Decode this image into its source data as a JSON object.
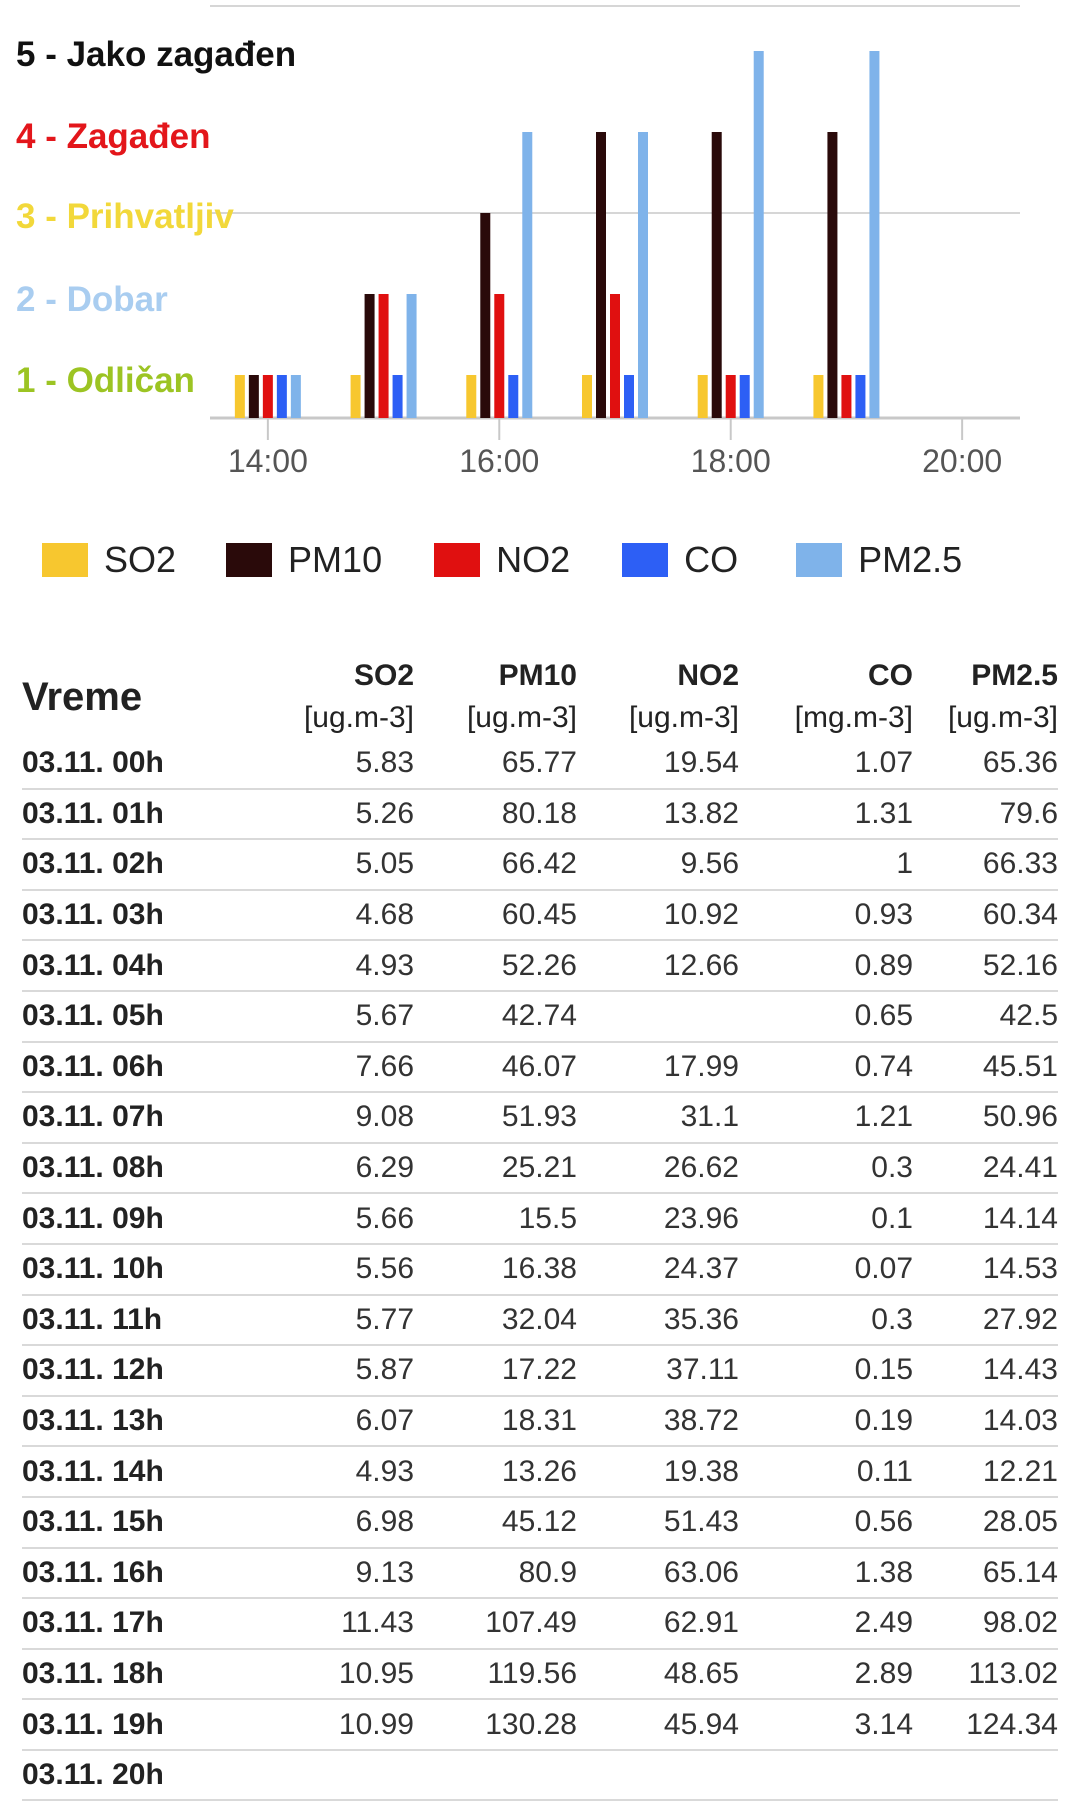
{
  "chart_data": {
    "type": "bar",
    "categories": [
      "14:00",
      "15:00",
      "16:00",
      "17:00",
      "18:00",
      "19:00"
    ],
    "x_ticks": [
      "14:00",
      "16:00",
      "18:00",
      "20:00"
    ],
    "x_range": [
      "13:30",
      "20:30"
    ],
    "ylim": [
      0.5,
      5.5
    ],
    "y_levels": [
      {
        "value": 5,
        "label": "5 - Jako zagađen",
        "color": "#111111"
      },
      {
        "value": 4,
        "label": "4 - Zagađen",
        "color": "#e3161b"
      },
      {
        "value": 3,
        "label": "3 - Prihvatljiv",
        "color": "#f2d83a"
      },
      {
        "value": 2,
        "label": "2 - Dobar",
        "color": "#a9cdf0"
      },
      {
        "value": 1,
        "label": "1 - Odličan",
        "color": "#9cc423"
      }
    ],
    "series": [
      {
        "name": "SO2",
        "color": "#f7c72f",
        "values": [
          1,
          1,
          1,
          1,
          1,
          1
        ]
      },
      {
        "name": "PM10",
        "color": "#2a0a0a",
        "values": [
          1,
          2,
          3,
          4,
          4,
          4
        ]
      },
      {
        "name": "NO2",
        "color": "#e01010",
        "values": [
          1,
          2,
          2,
          2,
          1,
          1
        ]
      },
      {
        "name": "CO",
        "color": "#2d5ff5",
        "values": [
          1,
          1,
          1,
          1,
          1,
          1
        ]
      },
      {
        "name": "PM2.5",
        "color": "#7fb3ea",
        "values": [
          1,
          2,
          4,
          4,
          5,
          5
        ]
      }
    ],
    "grid": true,
    "legend_position": "bottom"
  },
  "table": {
    "time_header": "Vreme",
    "columns": [
      {
        "name": "SO2",
        "unit": "[ug.m-3]"
      },
      {
        "name": "PM10",
        "unit": "[ug.m-3]"
      },
      {
        "name": "NO2",
        "unit": "[ug.m-3]"
      },
      {
        "name": "CO",
        "unit": "[mg.m-3]"
      },
      {
        "name": "PM2.5",
        "unit": "[ug.m-3]"
      }
    ],
    "rows": [
      {
        "time": "03.11. 00h",
        "values": [
          "5.83",
          "65.77",
          "19.54",
          "1.07",
          "65.36"
        ]
      },
      {
        "time": "03.11. 01h",
        "values": [
          "5.26",
          "80.18",
          "13.82",
          "1.31",
          "79.6"
        ]
      },
      {
        "time": "03.11. 02h",
        "values": [
          "5.05",
          "66.42",
          "9.56",
          "1",
          "66.33"
        ]
      },
      {
        "time": "03.11. 03h",
        "values": [
          "4.68",
          "60.45",
          "10.92",
          "0.93",
          "60.34"
        ]
      },
      {
        "time": "03.11. 04h",
        "values": [
          "4.93",
          "52.26",
          "12.66",
          "0.89",
          "52.16"
        ]
      },
      {
        "time": "03.11. 05h",
        "values": [
          "5.67",
          "42.74",
          "",
          "0.65",
          "42.5"
        ]
      },
      {
        "time": "03.11. 06h",
        "values": [
          "7.66",
          "46.07",
          "17.99",
          "0.74",
          "45.51"
        ]
      },
      {
        "time": "03.11. 07h",
        "values": [
          "9.08",
          "51.93",
          "31.1",
          "1.21",
          "50.96"
        ]
      },
      {
        "time": "03.11. 08h",
        "values": [
          "6.29",
          "25.21",
          "26.62",
          "0.3",
          "24.41"
        ]
      },
      {
        "time": "03.11. 09h",
        "values": [
          "5.66",
          "15.5",
          "23.96",
          "0.1",
          "14.14"
        ]
      },
      {
        "time": "03.11. 10h",
        "values": [
          "5.56",
          "16.38",
          "24.37",
          "0.07",
          "14.53"
        ]
      },
      {
        "time": "03.11. 11h",
        "values": [
          "5.77",
          "32.04",
          "35.36",
          "0.3",
          "27.92"
        ]
      },
      {
        "time": "03.11. 12h",
        "values": [
          "5.87",
          "17.22",
          "37.11",
          "0.15",
          "14.43"
        ]
      },
      {
        "time": "03.11. 13h",
        "values": [
          "6.07",
          "18.31",
          "38.72",
          "0.19",
          "14.03"
        ]
      },
      {
        "time": "03.11. 14h",
        "values": [
          "4.93",
          "13.26",
          "19.38",
          "0.11",
          "12.21"
        ]
      },
      {
        "time": "03.11. 15h",
        "values": [
          "6.98",
          "45.12",
          "51.43",
          "0.56",
          "28.05"
        ]
      },
      {
        "time": "03.11. 16h",
        "values": [
          "9.13",
          "80.9",
          "63.06",
          "1.38",
          "65.14"
        ]
      },
      {
        "time": "03.11. 17h",
        "values": [
          "11.43",
          "107.49",
          "62.91",
          "2.49",
          "98.02"
        ]
      },
      {
        "time": "03.11. 18h",
        "values": [
          "10.95",
          "119.56",
          "48.65",
          "2.89",
          "113.02"
        ]
      },
      {
        "time": "03.11. 19h",
        "values": [
          "10.99",
          "130.28",
          "45.94",
          "3.14",
          "124.34"
        ]
      },
      {
        "time": "03.11. 20h",
        "values": [
          "",
          "",
          "",
          "",
          ""
        ]
      }
    ]
  }
}
